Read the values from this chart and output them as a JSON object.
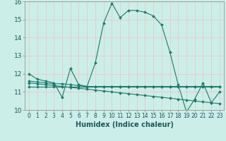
{
  "xlabel": "Humidex (Indice chaleur)",
  "bg_color": "#cceee8",
  "grid_color": "#e8c8c8",
  "line_color": "#1a7a6a",
  "xlim": [
    -0.5,
    23.5
  ],
  "ylim": [
    10,
    16
  ],
  "xticks": [
    0,
    1,
    2,
    3,
    4,
    5,
    6,
    7,
    8,
    9,
    10,
    11,
    12,
    13,
    14,
    15,
    16,
    17,
    18,
    19,
    20,
    21,
    22,
    23
  ],
  "yticks": [
    10,
    11,
    12,
    13,
    14,
    15,
    16
  ],
  "line1_x": [
    0,
    1,
    2,
    3,
    4,
    5,
    6,
    7,
    8,
    9,
    10,
    11,
    12,
    13,
    14,
    15,
    16,
    17,
    18,
    19,
    20,
    21,
    22,
    23
  ],
  "line1_y": [
    12.0,
    11.7,
    11.6,
    11.5,
    10.7,
    12.3,
    11.4,
    11.3,
    12.6,
    14.8,
    15.9,
    15.1,
    15.5,
    15.5,
    15.4,
    15.2,
    14.7,
    13.2,
    11.4,
    9.9,
    10.6,
    11.5,
    10.4,
    11.0
  ],
  "line2_x": [
    0,
    1,
    2,
    3,
    4,
    5,
    6,
    7,
    8,
    9,
    10,
    11,
    12,
    13,
    14,
    15,
    16,
    17,
    18,
    19,
    20,
    21,
    22,
    23
  ],
  "line2_y": [
    11.5,
    11.45,
    11.4,
    11.35,
    11.3,
    11.25,
    11.2,
    11.15,
    11.1,
    11.05,
    11.0,
    10.95,
    10.9,
    10.85,
    10.8,
    10.75,
    10.7,
    10.65,
    10.6,
    10.55,
    10.5,
    10.45,
    10.4,
    10.35
  ],
  "line3_x": [
    0,
    1,
    2,
    3,
    4,
    5,
    6,
    7,
    8,
    9,
    10,
    11,
    12,
    13,
    14,
    15,
    16,
    17,
    18,
    19,
    20,
    21,
    22,
    23
  ],
  "line3_y": [
    11.3,
    11.3,
    11.3,
    11.3,
    11.3,
    11.3,
    11.3,
    11.3,
    11.3,
    11.3,
    11.3,
    11.3,
    11.3,
    11.3,
    11.3,
    11.3,
    11.3,
    11.3,
    11.3,
    11.3,
    11.3,
    11.3,
    11.3,
    11.3
  ],
  "line4_x": [
    0,
    1,
    2,
    3,
    4,
    5,
    6,
    7,
    8,
    9,
    10,
    11,
    12,
    13,
    14,
    15,
    16,
    17,
    18,
    19,
    20,
    21,
    22,
    23
  ],
  "line4_y": [
    11.6,
    11.55,
    11.5,
    11.45,
    11.45,
    11.4,
    11.35,
    11.3,
    11.3,
    11.3,
    11.3,
    11.3,
    11.3,
    11.3,
    11.3,
    11.3,
    11.3,
    11.3,
    11.3,
    11.3,
    11.3,
    11.3,
    11.3,
    11.3
  ]
}
